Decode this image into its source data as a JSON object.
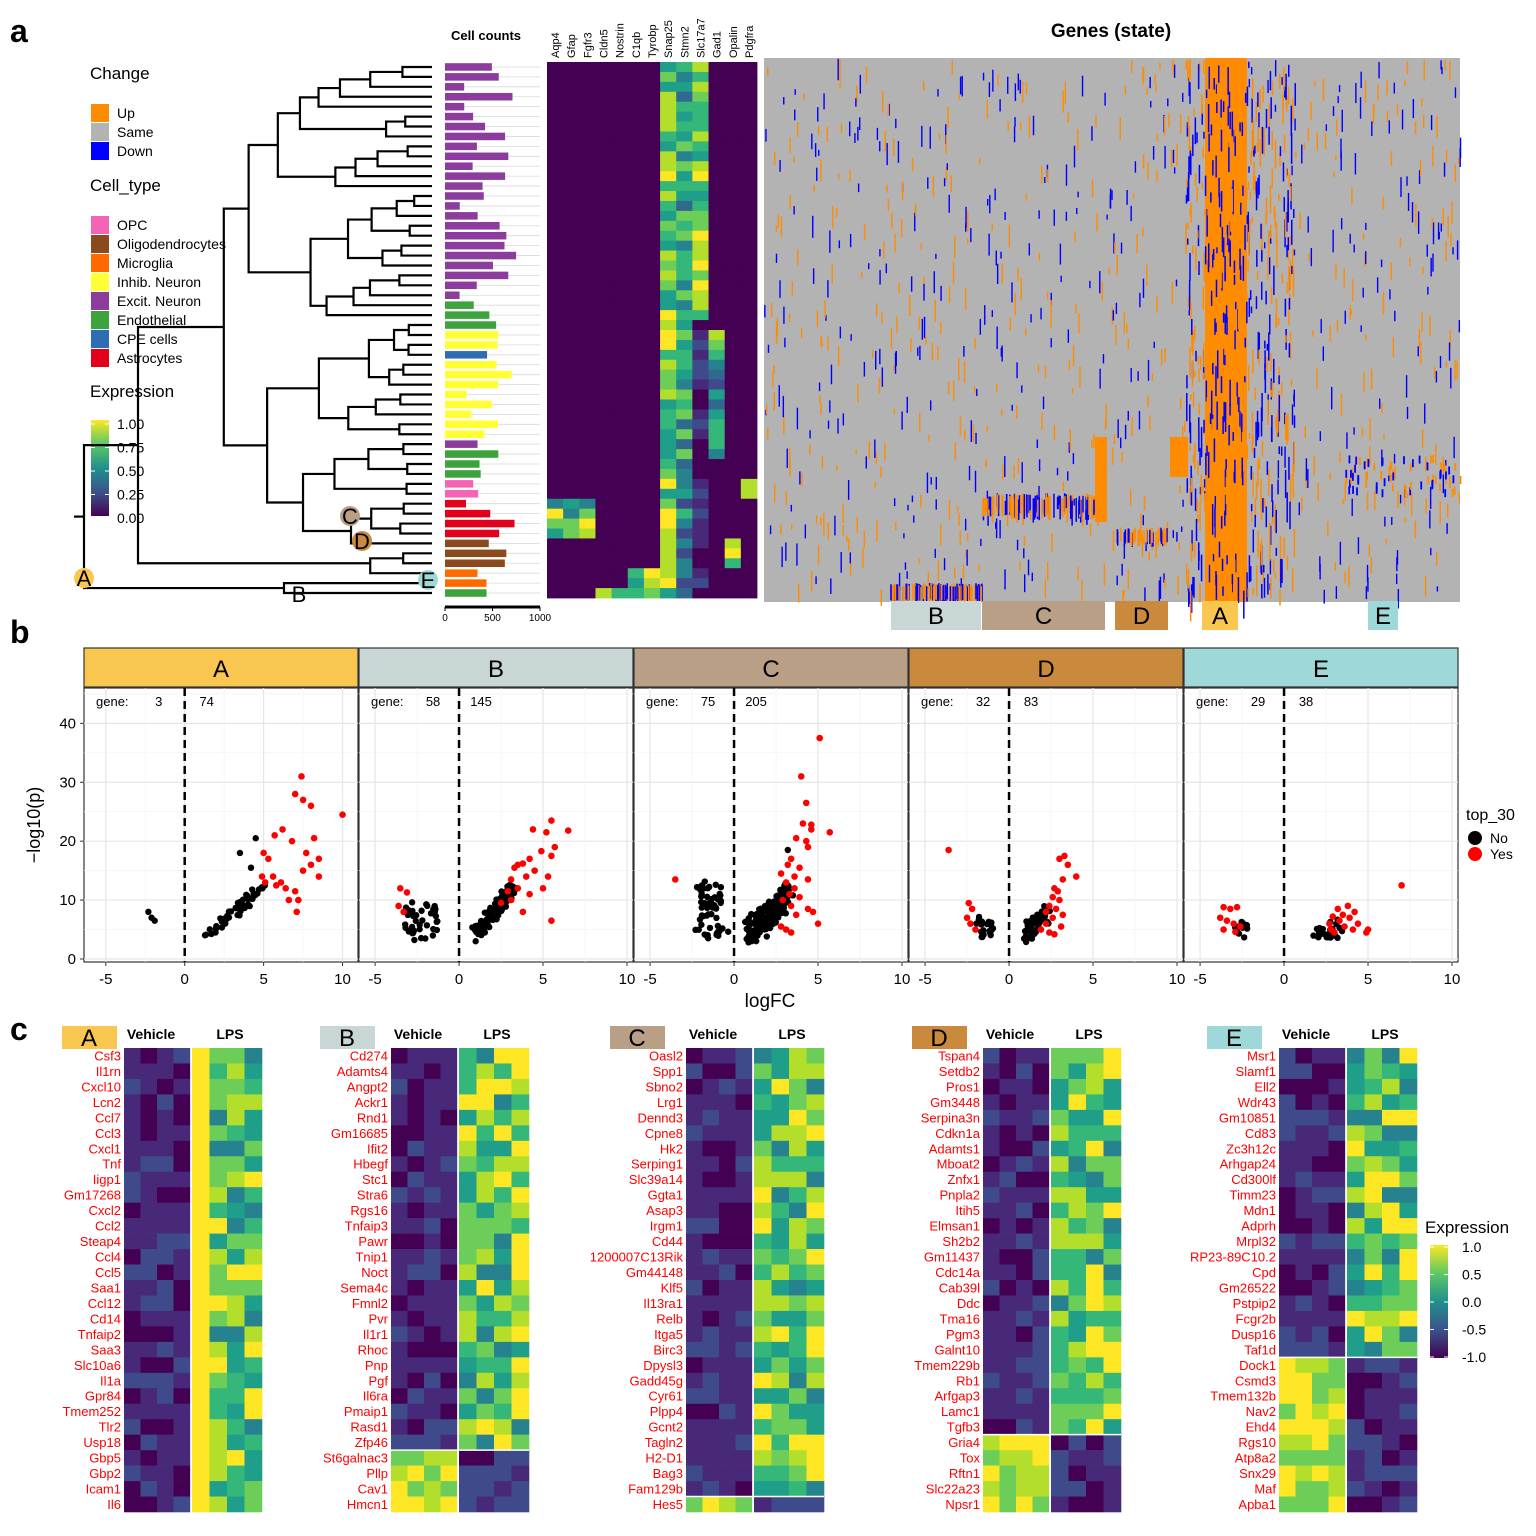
{
  "panel_labels": [
    "a",
    "b",
    "c"
  ],
  "colors": {
    "up": "#FF8C00",
    "same": "#B3B3B3",
    "down": "#0000FF",
    "clade_A": "#F9C74F",
    "clade_B": "#C9D6D6",
    "clade_C": "#B89F86",
    "clade_D": "#C98A3E",
    "clade_E": "#9ED8D8",
    "cell_types": {
      "OPC": "#F564B4",
      "Oligodendrocytes": "#8B4A1E",
      "Microglia": "#FF6A00",
      "Inhib. Neuron": "#FFFF33",
      "Excit. Neuron": "#8B3C9C",
      "Endothelial": "#3DA33D",
      "CPE cells": "#2F6DB3",
      "Astrocytes": "#E3001B"
    }
  },
  "legend_a": {
    "change_title": "Change",
    "change_items": [
      "Up",
      "Same",
      "Down"
    ],
    "cell_type_title": "Cell_type",
    "cell_type_items": [
      "OPC",
      "Oligodendrocytes",
      "Microglia",
      "Inhib. Neuron",
      "Excit. Neuron",
      "Endothelial",
      "CPE cells",
      "Astrocytes"
    ],
    "expression_title": "Expression",
    "expression_ticks": [
      "1.00",
      "0.75",
      "0.50",
      "0.25",
      "0.00"
    ]
  },
  "panel_a": {
    "cell_counts_title": "Cell counts",
    "cell_counts_ticks": [
      "0",
      "500",
      "1000"
    ],
    "marker_genes": [
      "Aqp4",
      "Gfap",
      "Fgfr3",
      "Cldn5",
      "Nostrin",
      "C1qb",
      "Tyrobp",
      "Snap25",
      "Stmn2",
      "Slc17a7",
      "Gad1",
      "Opalin",
      "Pdgfra"
    ],
    "genes_state_title": "Genes (state)",
    "clade_labels": [
      "A",
      "B",
      "C",
      "D",
      "E"
    ],
    "gene_block_labels": [
      "B",
      "C",
      "D",
      "A",
      "E"
    ]
  },
  "chart_data": [
    {
      "type": "scatter",
      "facet": "A",
      "gene_counts": {
        "down": "3",
        "up": "74"
      },
      "gene_label": "gene:",
      "xlabel": "logFC",
      "ylabel": "−log10(p)",
      "xlim": [
        -6,
        10.6
      ],
      "ylim": [
        0,
        46
      ],
      "x_ticks": [
        "-5",
        "0",
        "5",
        "10"
      ],
      "y_ticks": [
        "0",
        "10",
        "20",
        "30",
        "40"
      ],
      "legend_title": "top_30",
      "legend_items": [
        "No",
        "Yes"
      ],
      "black_cluster": {
        "x": [
          1.3,
          5.0
        ],
        "y": [
          3,
          13
        ],
        "n": 48,
        "corr": 0.85
      },
      "black_points": [
        [
          -2.3,
          8
        ],
        [
          -2.1,
          7
        ],
        [
          -1.9,
          6.5
        ],
        [
          3.5,
          18
        ],
        [
          4.5,
          20.5
        ],
        [
          4.2,
          15.5
        ]
      ],
      "red_points": [
        [
          7.4,
          31
        ],
        [
          7.0,
          28
        ],
        [
          7.5,
          27
        ],
        [
          8.0,
          26
        ],
        [
          10.0,
          24.5
        ],
        [
          6.2,
          22
        ],
        [
          5.7,
          21
        ],
        [
          6.8,
          20
        ],
        [
          8.2,
          20.5
        ],
        [
          5.0,
          18
        ],
        [
          7.7,
          18
        ],
        [
          5.3,
          17
        ],
        [
          8.5,
          17
        ],
        [
          8.0,
          16
        ],
        [
          7.5,
          15
        ],
        [
          5.6,
          14
        ],
        [
          6.1,
          13
        ],
        [
          5.1,
          13
        ],
        [
          5.8,
          12.5
        ],
        [
          6.4,
          12
        ],
        [
          7.0,
          11.5
        ],
        [
          7.2,
          10
        ],
        [
          6.6,
          10
        ],
        [
          7.1,
          8
        ],
        [
          8.5,
          14
        ],
        [
          4.9,
          14
        ]
      ]
    },
    {
      "type": "scatter",
      "facet": "B",
      "gene_counts": {
        "down": "58",
        "up": "145"
      },
      "gene_label": "gene:",
      "xlabel": "logFC",
      "ylabel": "−log10(p)",
      "xlim": [
        -5.6,
        10
      ],
      "ylim": [
        0,
        46
      ],
      "x_ticks": [
        "-5",
        "0",
        "5",
        "10"
      ],
      "y_ticks": [
        "0",
        "10",
        "20",
        "30",
        "40"
      ],
      "black_cluster_left": {
        "x": [
          -3.2,
          -1.3
        ],
        "y": [
          3.5,
          9
        ],
        "n": 40
      },
      "black_cluster": {
        "x": [
          1.0,
          3.3
        ],
        "y": [
          3,
          13
        ],
        "n": 110,
        "corr": 0.8
      },
      "red_points": [
        [
          -3.5,
          12
        ],
        [
          -3.1,
          11.3
        ],
        [
          -3.6,
          9
        ],
        [
          -3.3,
          8
        ],
        [
          5.5,
          23.5
        ],
        [
          6.5,
          21.8
        ],
        [
          4.4,
          22
        ],
        [
          5.2,
          21.5
        ],
        [
          5.7,
          19
        ],
        [
          4.9,
          18.3
        ],
        [
          5.5,
          17.5
        ],
        [
          4.2,
          17
        ],
        [
          3.8,
          16.2
        ],
        [
          3.5,
          16
        ],
        [
          3.3,
          15.5
        ],
        [
          4.5,
          15
        ],
        [
          4.0,
          14
        ],
        [
          3.1,
          13.5
        ],
        [
          5.3,
          14
        ],
        [
          3.5,
          12
        ],
        [
          5.0,
          12
        ],
        [
          2.9,
          11.5
        ],
        [
          4.2,
          11
        ],
        [
          3.1,
          10
        ],
        [
          2.5,
          9.5
        ],
        [
          5.5,
          6.5
        ],
        [
          3.8,
          8
        ]
      ]
    },
    {
      "type": "scatter",
      "facet": "C",
      "gene_counts": {
        "down": "75",
        "up": "205"
      },
      "gene_label": "gene:",
      "xlabel": "logFC",
      "ylabel": "−log10(p)",
      "xlim": [
        -5.6,
        10
      ],
      "ylim": [
        0,
        46
      ],
      "x_ticks": [
        "-5",
        "0",
        "5",
        "10"
      ],
      "y_ticks": [
        "0",
        "10",
        "20",
        "30",
        "40"
      ],
      "black_cluster_left": {
        "x": [
          -2.2,
          -0.6
        ],
        "y": [
          3.5,
          13
        ],
        "n": 55
      },
      "black_cluster": {
        "x": [
          0.8,
          3.3
        ],
        "y": [
          2,
          13
        ],
        "n": 160,
        "corr": 0.6
      },
      "black_points": [
        [
          3.2,
          18.5
        ]
      ],
      "red_points": [
        [
          -3.5,
          13.5
        ],
        [
          5.1,
          37.5
        ],
        [
          4.0,
          31
        ],
        [
          4.3,
          26.5
        ],
        [
          4.6,
          22
        ],
        [
          5.7,
          21.5
        ],
        [
          4.1,
          23
        ],
        [
          4.6,
          22.8
        ],
        [
          3.7,
          20.5
        ],
        [
          4.3,
          20
        ],
        [
          4.4,
          19
        ],
        [
          3.4,
          17
        ],
        [
          3.2,
          16
        ],
        [
          3.9,
          15.5
        ],
        [
          2.8,
          14.5
        ],
        [
          3.6,
          14
        ],
        [
          4.4,
          13.5
        ],
        [
          3.1,
          13
        ],
        [
          3.6,
          12
        ],
        [
          3.3,
          11
        ],
        [
          3.9,
          10.5
        ],
        [
          2.9,
          10
        ],
        [
          3.4,
          9
        ],
        [
          4.4,
          8.5
        ],
        [
          3.7,
          7.5
        ],
        [
          5.0,
          6
        ],
        [
          2.8,
          5.5
        ],
        [
          3.1,
          5
        ],
        [
          3.4,
          4.5
        ],
        [
          4.7,
          8
        ]
      ]
    },
    {
      "type": "scatter",
      "facet": "D",
      "gene_counts": {
        "down": "32",
        "up": "83"
      },
      "gene_label": "gene:",
      "xlabel": "logFC",
      "ylabel": "−log10(p)",
      "xlim": [
        -5.6,
        10
      ],
      "ylim": [
        0,
        46
      ],
      "x_ticks": [
        "-5",
        "0",
        "5",
        "10"
      ],
      "y_ticks": [
        "0",
        "10",
        "20",
        "30",
        "40"
      ],
      "black_cluster_left": {
        "x": [
          -2.0,
          -1.0
        ],
        "y": [
          3.5,
          7
        ],
        "n": 20
      },
      "black_cluster": {
        "x": [
          1.0,
          2.3
        ],
        "y": [
          3,
          9
        ],
        "n": 60,
        "corr": 0.6
      },
      "red_points": [
        [
          -3.6,
          18.5
        ],
        [
          -2.4,
          9.5
        ],
        [
          -2.2,
          8.5
        ],
        [
          -2.5,
          7
        ],
        [
          -2.3,
          6
        ],
        [
          -2.0,
          5
        ],
        [
          3.3,
          17.5
        ],
        [
          3.0,
          17
        ],
        [
          3.5,
          16
        ],
        [
          4.0,
          14
        ],
        [
          3.2,
          13.5
        ],
        [
          2.7,
          12
        ],
        [
          2.9,
          11.5
        ],
        [
          2.6,
          10.5
        ],
        [
          3.0,
          10
        ],
        [
          2.4,
          9
        ],
        [
          2.8,
          8.5
        ],
        [
          2.2,
          8
        ],
        [
          3.2,
          7.5
        ],
        [
          2.6,
          7
        ],
        [
          2.2,
          6
        ],
        [
          1.9,
          5
        ],
        [
          2.4,
          4.5
        ],
        [
          2.7,
          4.2
        ],
        [
          3.1,
          5.5
        ]
      ]
    },
    {
      "type": "scatter",
      "facet": "E",
      "gene_counts": {
        "down": "29",
        "up": "38"
      },
      "gene_label": "gene:",
      "xlabel": "logFC",
      "ylabel": "−log10(p)",
      "xlim": [
        -5.6,
        10
      ],
      "ylim": [
        0,
        46
      ],
      "x_ticks": [
        "-5",
        "0",
        "5",
        "10"
      ],
      "y_ticks": [
        "0",
        "10",
        "20",
        "30",
        "40"
      ],
      "black_cluster_left": {
        "x": [
          -3.0,
          -2.0
        ],
        "y": [
          3.5,
          6
        ],
        "n": 14
      },
      "black_cluster": {
        "x": [
          1.8,
          3.5
        ],
        "y": [
          3.5,
          6.5
        ],
        "n": 26,
        "corr": 0.3
      },
      "red_points": [
        [
          7.0,
          12.5
        ],
        [
          -3.6,
          8.8
        ],
        [
          -3.2,
          8.5
        ],
        [
          -2.8,
          8.8
        ],
        [
          -3.8,
          7
        ],
        [
          -3.4,
          6.5
        ],
        [
          -3.0,
          6
        ],
        [
          -2.6,
          5.5
        ],
        [
          -3.6,
          5
        ],
        [
          -2.9,
          4.6
        ],
        [
          3.8,
          9
        ],
        [
          3.2,
          8.5
        ],
        [
          4.2,
          8
        ],
        [
          3.5,
          7.5
        ],
        [
          2.9,
          7.2
        ],
        [
          3.9,
          7
        ],
        [
          3.3,
          6.5
        ],
        [
          4.4,
          6
        ],
        [
          2.7,
          6
        ],
        [
          3.6,
          5.5
        ],
        [
          4.1,
          5
        ],
        [
          5.0,
          5
        ],
        [
          4.9,
          4.5
        ],
        [
          3.0,
          4.5
        ],
        [
          2.8,
          5
        ]
      ]
    }
  ],
  "panel_c": {
    "vehicle_label": "Vehicle",
    "lps_label": "LPS",
    "expression_title": "Expression",
    "expression_ticks": [
      "1.0",
      "0.5",
      "0.0",
      "-0.5",
      "-1.0"
    ],
    "blocks": [
      {
        "label": "A",
        "down_count": 0,
        "genes": [
          "Csf3",
          "Il1rn",
          "Cxcl10",
          "Lcn2",
          "Ccl7",
          "Ccl3",
          "Cxcl1",
          "Tnf",
          "Iigp1",
          "Gm17268",
          "Cxcl2",
          "Ccl2",
          "Steap4",
          "Ccl4",
          "Ccl5",
          "Saa1",
          "Ccl12",
          "Cd14",
          "Tnfaip2",
          "Saa3",
          "Slc10a6",
          "Il1a",
          "Gpr84",
          "Tmem252",
          "Tlr2",
          "Usp18",
          "Gbp5",
          "Gbp2",
          "Icam1",
          "Il6"
        ]
      },
      {
        "label": "B",
        "down_count": 4,
        "genes": [
          "Cd274",
          "Adamts4",
          "Angpt2",
          "Ackr1",
          "Rnd1",
          "Gm16685",
          "Ifit2",
          "Hbegf",
          "Stc1",
          "Stra6",
          "Rgs16",
          "Tnfaip3",
          "Pawr",
          "Tnip1",
          "Noct",
          "Sema4c",
          "Fmnl2",
          "Pvr",
          "Il1r1",
          "Rhoc",
          "Pnp",
          "Pgf",
          "Il6ra",
          "Pmaip1",
          "Rasd1",
          "Zfp46",
          "St6galnac3",
          "Pllp",
          "Cav1",
          "Hmcn1"
        ]
      },
      {
        "label": "C",
        "down_count": 1,
        "genes": [
          "Oasl2",
          "Spp1",
          "Sbno2",
          "Lrg1",
          "Dennd3",
          "Cpne8",
          "Hk2",
          "Serping1",
          "Slc39a14",
          "Ggta1",
          "Asap3",
          "Irgm1",
          "Cd44",
          "1200007C13Rik",
          "Gm44148",
          "Klf5",
          "Il13ra1",
          "Relb",
          "Itga5",
          "Birc3",
          "Dpysl3",
          "Gadd45g",
          "Cyr61",
          "Plpp4",
          "Gcnt2",
          "Tagln2",
          "H2-D1",
          "Bag3",
          "Fam129b",
          "Hes5"
        ]
      },
      {
        "label": "D",
        "down_count": 5,
        "genes": [
          "Tspan4",
          "Setdb2",
          "Pros1",
          "Gm3448",
          "Serpina3n",
          "Cdkn1a",
          "Adamts1",
          "Mboat2",
          "Znfx1",
          "Pnpla2",
          "Itih5",
          "Elmsan1",
          "Sh2b2",
          "Gm11437",
          "Cdc14a",
          "Cab39l",
          "Ddc",
          "Tma16",
          "Pgm3",
          "Galnt10",
          "Tmem229b",
          "Rb1",
          "Arfgap3",
          "Lamc1",
          "Tgfb3",
          "Gria4",
          "Tox",
          "Rftn1",
          "Slc22a23",
          "Npsr1"
        ]
      },
      {
        "label": "E",
        "down_count": 10,
        "genes": [
          "Msr1",
          "Slamf1",
          "Ell2",
          "Wdr43",
          "Gm10851",
          "Cd83",
          "Zc3h12c",
          "Arhgap24",
          "Cd300lf",
          "Timm23",
          "Mdn1",
          "Adprh",
          "Mrpl32",
          "RP23-89C10.2",
          "Cpd",
          "Gm26522",
          "Pstpip2",
          "Fcgr2b",
          "Dusp16",
          "Taf1d",
          "Dock1",
          "Csmd3",
          "Tmem132b",
          "Nav2",
          "Ehd4",
          "Rgs10",
          "Atp8a2",
          "Snx29",
          "Maf",
          "Apba1"
        ]
      }
    ]
  }
}
